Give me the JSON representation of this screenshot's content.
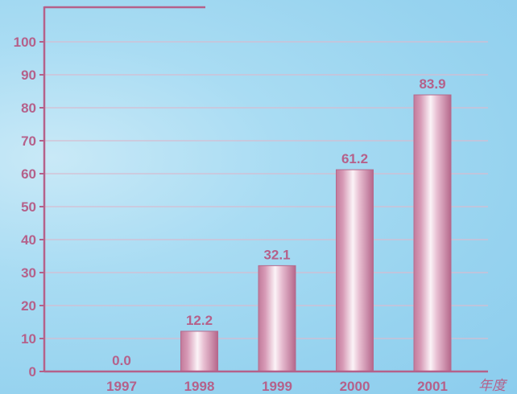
{
  "chart_data": {
    "type": "bar",
    "categories": [
      "1997",
      "1998",
      "1999",
      "2000",
      "2001"
    ],
    "values": [
      0.0,
      12.2,
      32.1,
      61.2,
      83.9
    ],
    "value_labels": [
      "0.0",
      "12.2",
      "32.1",
      "61.2",
      "83.9"
    ],
    "title": "",
    "xlabel": "年度",
    "ylabel": "",
    "ylim": [
      0,
      100
    ],
    "yticks": [
      0,
      10,
      20,
      30,
      40,
      50,
      60,
      70,
      80,
      90,
      100
    ],
    "grid": true
  },
  "colors": {
    "text": "#b5618a",
    "axis": "#b5618a",
    "grid": "#d7bcd0",
    "bar_edge": "#b56a8c",
    "bar_mid": "#f8eef3",
    "bar_dark": "#c07698"
  }
}
